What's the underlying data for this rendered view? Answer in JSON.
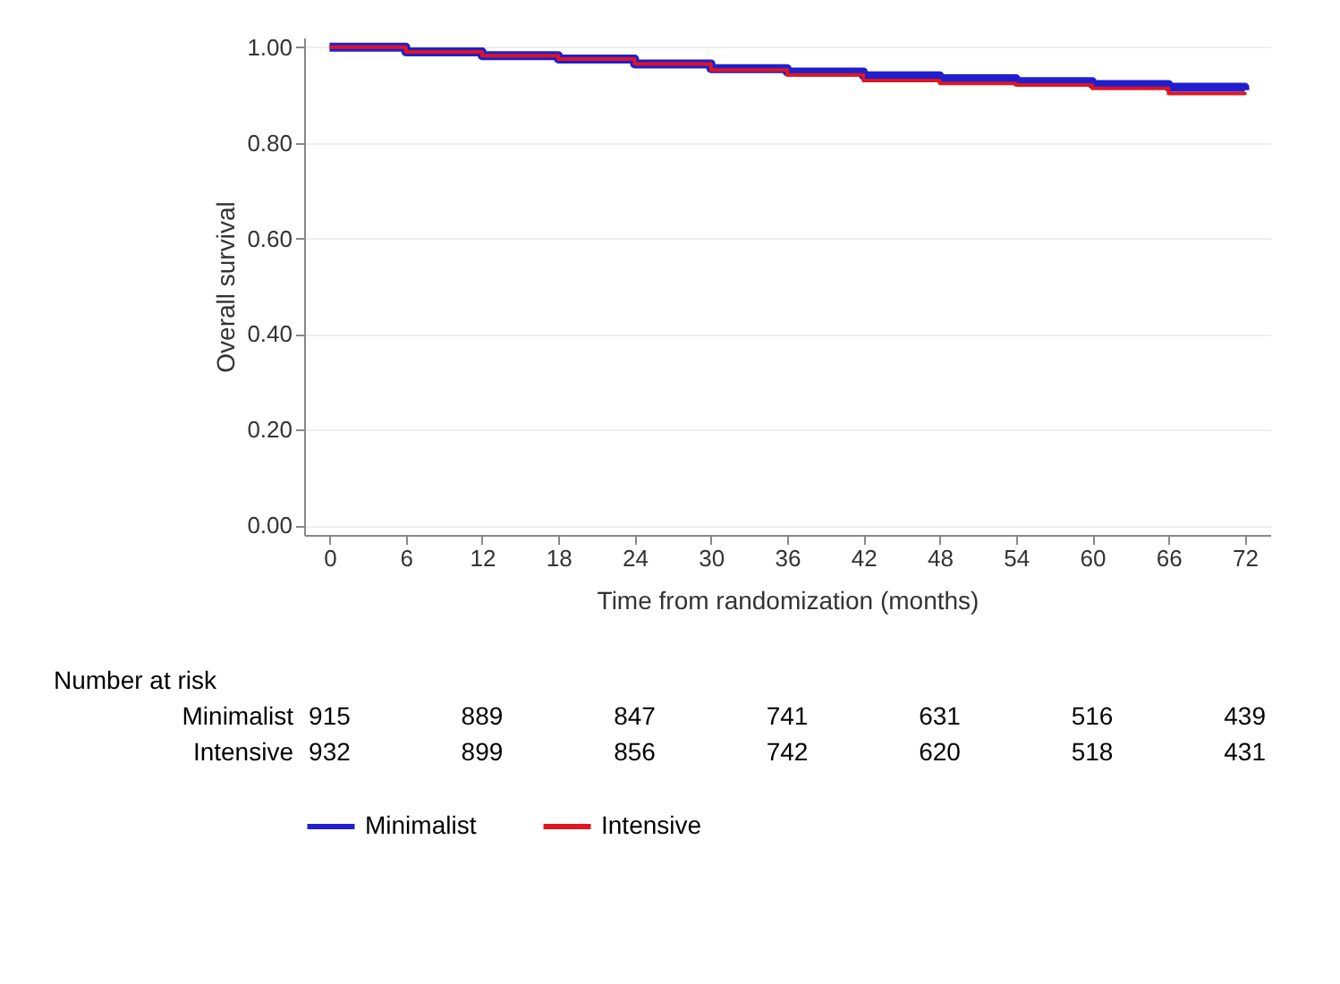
{
  "chart_data": {
    "type": "step",
    "xlabel": "Time from randomization (months)",
    "ylabel": "Overall survival",
    "x": [
      0,
      6,
      12,
      18,
      24,
      30,
      36,
      42,
      48,
      54,
      60,
      66,
      72
    ],
    "series": [
      {
        "name": "Minimalist",
        "color": "#1f1fd0",
        "values": [
          1.0,
          0.99,
          0.982,
          0.975,
          0.965,
          0.955,
          0.948,
          0.94,
          0.934,
          0.928,
          0.922,
          0.916,
          0.91
        ]
      },
      {
        "name": "Intensive",
        "color": "#e0151f",
        "values": [
          1.0,
          0.99,
          0.982,
          0.975,
          0.965,
          0.952,
          0.942,
          0.93,
          0.924,
          0.921,
          0.914,
          0.903,
          0.9
        ]
      }
    ],
    "xlim": [
      -2,
      74
    ],
    "xticks": [
      0,
      6,
      12,
      18,
      24,
      30,
      36,
      42,
      48,
      54,
      60,
      66,
      72
    ],
    "ylim": [
      -0.02,
      1.02
    ],
    "yticks": [
      {
        "value": 0,
        "label": "0.00"
      },
      {
        "value": 0.2,
        "label": "0.20"
      },
      {
        "value": 0.4,
        "label": "0.40"
      },
      {
        "value": 0.6,
        "label": "0.60"
      },
      {
        "value": 0.8,
        "label": "0.80"
      },
      {
        "value": 1,
        "label": "1.00"
      }
    ],
    "grid": "y",
    "legend": "bottom",
    "annotations": [
      "Number at risk",
      "Minimalist",
      "915",
      "889",
      "847",
      "741",
      "631",
      "516",
      "439",
      "Intensive",
      "932",
      "899",
      "856",
      "742",
      "620",
      "518",
      "431"
    ]
  }
}
